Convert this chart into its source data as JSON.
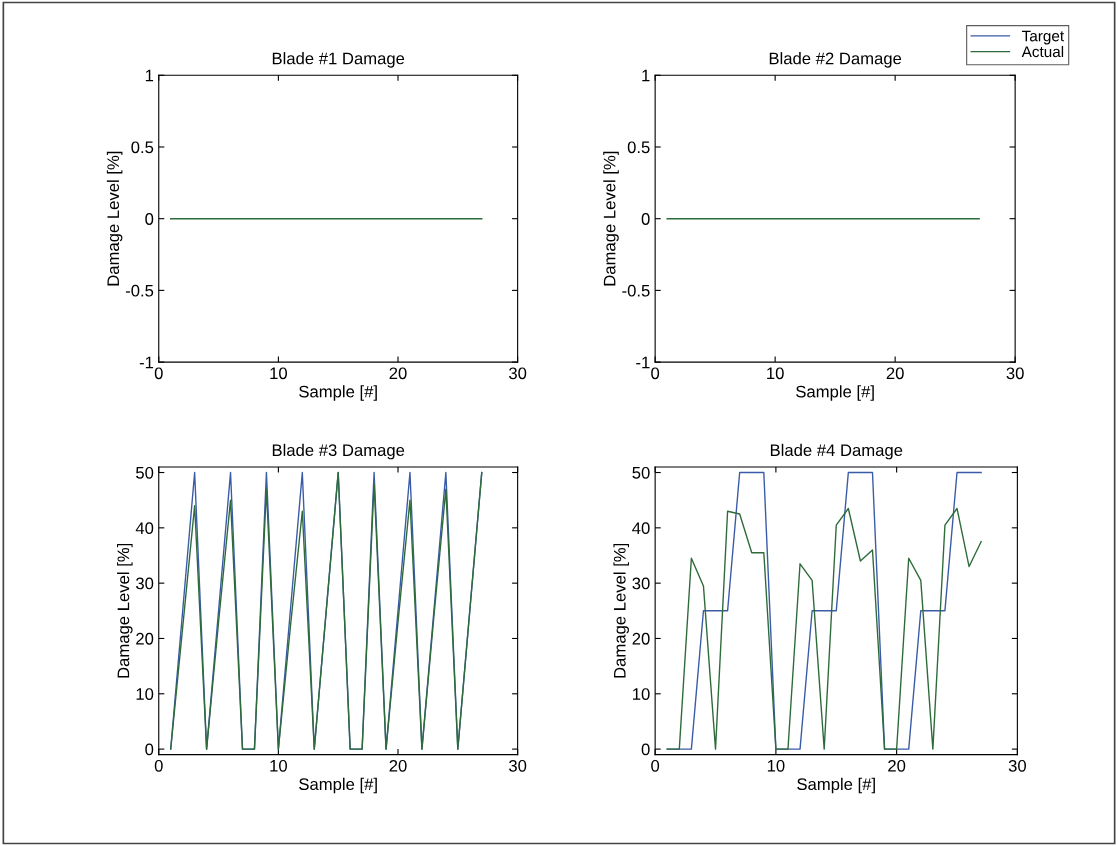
{
  "chart_data": [
    {
      "type": "line",
      "title": "Blade #1 Damage",
      "xlabel": "Sample [#]",
      "ylabel": "Damage Level [%]",
      "xlim": [
        0,
        30
      ],
      "xticks": [
        0,
        10,
        20,
        30
      ],
      "ylim": [
        -1,
        1
      ],
      "yticks": [
        -1,
        -0.5,
        0,
        0.5,
        1
      ],
      "x": [
        1,
        2,
        3,
        4,
        5,
        6,
        7,
        8,
        9,
        10,
        11,
        12,
        13,
        14,
        15,
        16,
        17,
        18,
        19,
        20,
        21,
        22,
        23,
        24,
        25,
        26,
        27
      ],
      "grid": false,
      "legend": false,
      "series": [
        {
          "color": "#3a5ba8",
          "values": [
            null,
            null,
            null,
            null,
            null,
            null,
            null,
            null,
            null,
            null,
            null,
            null,
            null,
            null,
            null,
            null,
            null,
            null,
            null,
            null,
            null,
            null,
            null,
            null,
            null,
            null,
            null
          ]
        },
        {
          "color": "#2e6b3a",
          "values": [
            0,
            0,
            0,
            0,
            0,
            0,
            0,
            0,
            0,
            0,
            0,
            0,
            0,
            0,
            0,
            0,
            0,
            0,
            0,
            0,
            0,
            0,
            0,
            0,
            0,
            0,
            0
          ]
        }
      ]
    },
    {
      "type": "line",
      "title": "Blade #2 Damage",
      "xlabel": "Sample [#]",
      "ylabel": "Damage Level [%]",
      "xlim": [
        0,
        30
      ],
      "xticks": [
        0,
        10,
        20,
        30
      ],
      "ylim": [
        -1,
        1
      ],
      "yticks": [
        -1,
        -0.5,
        0,
        0.5,
        1
      ],
      "x": [
        1,
        2,
        3,
        4,
        5,
        6,
        7,
        8,
        9,
        10,
        11,
        12,
        13,
        14,
        15,
        16,
        17,
        18,
        19,
        20,
        21,
        22,
        23,
        24,
        25,
        26,
        27
      ],
      "grid": false,
      "legend": "top right",
      "series": [
        {
          "name": "Target",
          "color": "#3a5ba8",
          "values": [
            null,
            null,
            null,
            null,
            null,
            null,
            null,
            null,
            null,
            null,
            null,
            null,
            null,
            null,
            null,
            null,
            null,
            null,
            null,
            null,
            null,
            null,
            null,
            null,
            null,
            null,
            null
          ]
        },
        {
          "name": "Actual",
          "color": "#2e6b3a",
          "values": [
            0,
            0,
            0,
            0,
            0,
            0,
            0,
            0,
            0,
            0,
            0,
            0,
            0,
            0,
            0,
            0,
            0,
            0,
            0,
            0,
            0,
            0,
            0,
            0,
            0,
            0,
            0
          ]
        }
      ]
    },
    {
      "type": "line",
      "title": "Blade #3 Damage",
      "xlabel": "Sample [#]",
      "ylabel": "Damage Level [%]",
      "xlim": [
        0,
        30
      ],
      "xticks": [
        0,
        10,
        20,
        30
      ],
      "ylim": [
        -1,
        51
      ],
      "yticks": [
        0,
        10,
        20,
        30,
        40,
        50
      ],
      "x": [
        1,
        2,
        3,
        4,
        5,
        6,
        7,
        8,
        9,
        10,
        11,
        12,
        13,
        14,
        15,
        16,
        17,
        18,
        19,
        20,
        21,
        22,
        23,
        24,
        25,
        26,
        27
      ],
      "grid": false,
      "legend": false,
      "series": [
        {
          "color": "#3a5ba8",
          "values": [
            0,
            25,
            50,
            0,
            25,
            50,
            0,
            0,
            50,
            0,
            25,
            50,
            0,
            25,
            50,
            0,
            0,
            50,
            0,
            25,
            50,
            0,
            25,
            50,
            0,
            25,
            50
          ]
        },
        {
          "color": "#2e6b3a",
          "values": [
            0,
            22,
            44,
            0,
            23,
            45,
            0,
            0,
            47,
            0,
            22,
            43,
            0,
            25,
            50,
            0,
            0,
            48,
            0,
            23,
            45,
            0,
            24,
            47,
            0,
            25,
            50
          ]
        }
      ]
    },
    {
      "type": "line",
      "title": "Blade #4 Damage",
      "xlabel": "Sample [#]",
      "ylabel": "Damage Level [%]",
      "xlim": [
        0,
        30
      ],
      "xticks": [
        0,
        10,
        20,
        30
      ],
      "ylim": [
        -1,
        51
      ],
      "yticks": [
        0,
        10,
        20,
        30,
        40,
        50
      ],
      "x": [
        1,
        2,
        3,
        4,
        5,
        6,
        7,
        8,
        9,
        10,
        11,
        12,
        13,
        14,
        15,
        16,
        17,
        18,
        19,
        20,
        21,
        22,
        23,
        24,
        25,
        26,
        27
      ],
      "grid": false,
      "legend": false,
      "series": [
        {
          "color": "#3a5ba8",
          "values": [
            0,
            0,
            0,
            25,
            25,
            25,
            50,
            50,
            50,
            0,
            0,
            0,
            25,
            25,
            25,
            50,
            50,
            50,
            0,
            0,
            0,
            25,
            25,
            25,
            50,
            50,
            50
          ]
        },
        {
          "color": "#2e6b3a",
          "values": [
            0,
            0,
            34.5,
            29.5,
            0,
            43,
            42.5,
            35.5,
            35.5,
            0,
            0,
            33.5,
            30.5,
            0,
            40.5,
            43.5,
            34,
            36,
            0,
            0,
            34.5,
            30.5,
            0,
            40.5,
            43.5,
            33,
            37.5
          ]
        }
      ]
    }
  ]
}
